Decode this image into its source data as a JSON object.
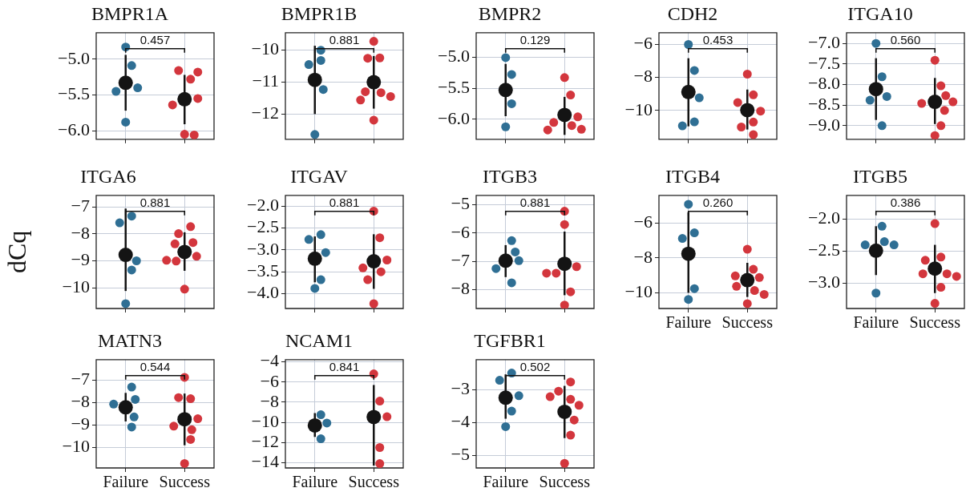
{
  "chart_data": [
    {
      "type": "scatter",
      "title": "BMPR1A",
      "categories": [
        "Failure",
        "Success"
      ],
      "ylim": [
        -6.12,
        -4.63
      ],
      "yticks": [
        {
          "value": -6,
          "label": "−6.0"
        },
        {
          "value": -5.5,
          "label": "−5.5"
        },
        {
          "value": -5,
          "label": "−5.0"
        }
      ],
      "grid": true,
      "marker": "circle",
      "tick_labels": "y",
      "series": [
        {
          "x": [
            "Failure",
            "Failure",
            "Failure",
            "Failure",
            "Failure"
          ],
          "values": [
            -4.83,
            -5.09,
            -5.4,
            -5.45,
            -5.88
          ],
          "color": "#2f6f94"
        },
        {
          "x": [
            "Success",
            "Success",
            "Success",
            "Success",
            "Success",
            "Success",
            "Success"
          ],
          "values": [
            -5.28,
            -5.16,
            -5.18,
            -5.55,
            -5.64,
            -6.05,
            -6.06
          ],
          "color": "#d3363d"
        },
        {
          "x": [
            "Failure",
            "Success"
          ],
          "values": [
            -5.33,
            -5.56
          ],
          "errors": [
            [
              -5.72,
              -4.94
            ],
            [
              -5.91,
              -5.22
            ]
          ],
          "color": "#141414"
        }
      ],
      "annotations": [
        "0.457"
      ]
    },
    {
      "type": "scatter",
      "title": "BMPR1B",
      "categories": [
        "Failure",
        "Success"
      ],
      "ylim": [
        -12.79,
        -9.45
      ],
      "yticks": [
        {
          "value": -12,
          "label": "−12"
        },
        {
          "value": -11,
          "label": "−11"
        },
        {
          "value": -10,
          "label": "−10"
        }
      ],
      "grid": true,
      "marker": "circle",
      "tick_labels": "y",
      "series": [
        {
          "x": [
            "Failure",
            "Failure",
            "Failure",
            "Failure",
            "Failure"
          ],
          "values": [
            -10.0,
            -10.32,
            -10.45,
            -11.23,
            -12.64
          ],
          "color": "#2f6f94"
        },
        {
          "x": [
            "Success",
            "Success",
            "Success",
            "Success",
            "Success",
            "Success",
            "Success",
            "Success"
          ],
          "values": [
            -9.72,
            -10.24,
            -10.25,
            -11.33,
            -11.3,
            -11.45,
            -11.56,
            -12.19
          ],
          "color": "#d3363d"
        },
        {
          "x": [
            "Failure",
            "Success"
          ],
          "values": [
            -10.93,
            -11.0
          ],
          "errors": [
            [
              -12.0,
              -9.86
            ],
            [
              -11.83,
              -10.18
            ]
          ],
          "color": "#141414"
        }
      ],
      "annotations": [
        "0.881"
      ]
    },
    {
      "type": "scatter",
      "title": "BMPR2",
      "categories": [
        "Failure",
        "Success"
      ],
      "ylim": [
        -6.32,
        -4.61
      ],
      "yticks": [
        {
          "value": -6,
          "label": "−6.0"
        },
        {
          "value": -5.5,
          "label": "−5.5"
        },
        {
          "value": -5,
          "label": "−5.0"
        }
      ],
      "grid": true,
      "marker": "circle",
      "tick_labels": "y",
      "series": [
        {
          "x": [
            "Failure",
            "Failure",
            "Failure",
            "Failure"
          ],
          "values": [
            -5.01,
            -5.28,
            -5.75,
            -6.12
          ],
          "color": "#2f6f94"
        },
        {
          "x": [
            "Success",
            "Success",
            "Success",
            "Success",
            "Success",
            "Success",
            "Success"
          ],
          "values": [
            -5.33,
            -5.61,
            -5.96,
            -6.05,
            -6.1,
            -6.16,
            -6.17
          ],
          "color": "#d3363d"
        },
        {
          "x": [
            "Failure",
            "Success"
          ],
          "values": [
            -5.53,
            -5.93
          ],
          "errors": [
            [
              -5.95,
              -5.11
            ],
            [
              -6.25,
              -5.64
            ]
          ],
          "color": "#141414"
        }
      ],
      "annotations": [
        "0.129"
      ]
    },
    {
      "type": "scatter",
      "title": "CDH2",
      "categories": [
        "Failure",
        "Success"
      ],
      "ylim": [
        -11.74,
        -5.31
      ],
      "yticks": [
        {
          "value": -10,
          "label": "−10"
        },
        {
          "value": -8,
          "label": "−8"
        },
        {
          "value": -6,
          "label": "−6"
        }
      ],
      "grid": true,
      "marker": "circle",
      "tick_labels": "y",
      "series": [
        {
          "x": [
            "Failure",
            "Failure",
            "Failure",
            "Failure",
            "Failure"
          ],
          "values": [
            -6.02,
            -7.59,
            -9.24,
            -10.69,
            -10.93
          ],
          "color": "#2f6f94"
        },
        {
          "x": [
            "Success",
            "Success",
            "Success",
            "Success",
            "Success",
            "Success",
            "Success"
          ],
          "values": [
            -7.81,
            -9.06,
            -9.52,
            -10.04,
            -10.7,
            -11.0,
            -11.46
          ],
          "color": "#d3363d"
        },
        {
          "x": [
            "Failure",
            "Success"
          ],
          "values": [
            -8.89,
            -9.98
          ],
          "errors": [
            [
              -10.96,
              -6.85
            ],
            [
              -11.15,
              -8.74
            ]
          ],
          "color": "#141414"
        }
      ],
      "annotations": [
        "0.453"
      ]
    },
    {
      "type": "scatter",
      "title": "ITGA10",
      "categories": [
        "Failure",
        "Success"
      ],
      "ylim": [
        -9.33,
        -6.74
      ],
      "yticks": [
        {
          "value": -9,
          "label": "−9.0"
        },
        {
          "value": -8.5,
          "label": "−8.5"
        },
        {
          "value": -8,
          "label": "−8.0"
        },
        {
          "value": -7.5,
          "label": "−7.5"
        },
        {
          "value": -7,
          "label": "−7.0"
        }
      ],
      "grid": true,
      "marker": "circle",
      "tick_labels": "y",
      "series": [
        {
          "x": [
            "Failure",
            "Failure",
            "Failure",
            "Failure",
            "Failure"
          ],
          "values": [
            -7.0,
            -7.81,
            -8.29,
            -8.38,
            -9.0
          ],
          "color": "#2f6f94"
        },
        {
          "x": [
            "Success",
            "Success",
            "Success",
            "Success",
            "Success",
            "Success",
            "Success",
            "Success"
          ],
          "values": [
            -7.41,
            -8.03,
            -8.27,
            -8.46,
            -8.42,
            -8.63,
            -9.0,
            -9.24
          ],
          "color": "#d3363d"
        },
        {
          "x": [
            "Failure",
            "Success"
          ],
          "values": [
            -8.11,
            -8.42
          ],
          "errors": [
            [
              -8.86,
              -7.36
            ],
            [
              -8.96,
              -7.84
            ]
          ],
          "color": "#141414"
        }
      ],
      "annotations": [
        "0.560"
      ]
    },
    {
      "type": "scatter",
      "title": "ITGA6",
      "ylabel": "dCq",
      "categories": [
        "Failure",
        "Success"
      ],
      "ylim": [
        -10.77,
        -6.57
      ],
      "yticks": [
        {
          "value": -10,
          "label": "−10"
        },
        {
          "value": -9,
          "label": "−9"
        },
        {
          "value": -8,
          "label": "−8"
        },
        {
          "value": -7,
          "label": "−7"
        }
      ],
      "grid": true,
      "marker": "circle",
      "tick_labels": "y",
      "series": [
        {
          "x": [
            "Failure",
            "Failure",
            "Failure",
            "Failure",
            "Failure"
          ],
          "values": [
            -7.34,
            -7.59,
            -9.0,
            -9.34,
            -10.59
          ],
          "color": "#2f6f94"
        },
        {
          "x": [
            "Success",
            "Success",
            "Success",
            "Success",
            "Success",
            "Success",
            "Success",
            "Success"
          ],
          "values": [
            -7.73,
            -7.99,
            -8.32,
            -8.37,
            -8.83,
            -9.01,
            -8.98,
            -10.05
          ],
          "color": "#d3363d"
        },
        {
          "x": [
            "Failure",
            "Success"
          ],
          "values": [
            -8.78,
            -8.67
          ],
          "errors": [
            [
              -10.12,
              -7.06
            ],
            [
              -9.37,
              -7.94
            ]
          ],
          "color": "#141414"
        }
      ],
      "annotations": [
        "0.881"
      ]
    },
    {
      "type": "scatter",
      "title": "ITGAV",
      "categories": [
        "Failure",
        "Success"
      ],
      "ylim": [
        -4.34,
        -1.75
      ],
      "yticks": [
        {
          "value": -4,
          "label": "−4.0"
        },
        {
          "value": -3.5,
          "label": "−3.5"
        },
        {
          "value": -3,
          "label": "−3.0"
        },
        {
          "value": -2.5,
          "label": "−2.5"
        },
        {
          "value": -2,
          "label": "−2.0"
        }
      ],
      "grid": true,
      "marker": "circle",
      "tick_labels": "y",
      "series": [
        {
          "x": [
            "Failure",
            "Failure",
            "Failure",
            "Failure",
            "Failure"
          ],
          "values": [
            -2.65,
            -2.76,
            -3.06,
            -3.68,
            -3.88
          ],
          "color": "#2f6f94"
        },
        {
          "x": [
            "Success",
            "Success",
            "Success",
            "Success",
            "Success",
            "Success",
            "Success"
          ],
          "values": [
            -2.11,
            -2.72,
            -3.23,
            -3.41,
            -3.5,
            -3.68,
            -4.23
          ],
          "color": "#d3363d"
        },
        {
          "x": [
            "Failure",
            "Success"
          ],
          "values": [
            -3.2,
            -3.26
          ],
          "errors": [
            [
              -3.74,
              -2.69
            ],
            [
              -3.89,
              -2.64
            ]
          ],
          "color": "#141414"
        }
      ],
      "annotations": [
        "0.881"
      ]
    },
    {
      "type": "scatter",
      "title": "ITGB3",
      "categories": [
        "Failure",
        "Success"
      ],
      "ylim": [
        -8.67,
        -4.67
      ],
      "yticks": [
        {
          "value": -8,
          "label": "−8"
        },
        {
          "value": -7,
          "label": "−7"
        },
        {
          "value": -6,
          "label": "−6"
        },
        {
          "value": -5,
          "label": "−5"
        }
      ],
      "grid": true,
      "marker": "circle",
      "tick_labels": "y",
      "series": [
        {
          "x": [
            "Failure",
            "Failure",
            "Failure",
            "Failure",
            "Failure"
          ],
          "values": [
            -6.27,
            -6.67,
            -6.98,
            -7.26,
            -7.76
          ],
          "color": "#2f6f94"
        },
        {
          "x": [
            "Success",
            "Success",
            "Success",
            "Success",
            "Success",
            "Success",
            "Success"
          ],
          "values": [
            -5.23,
            -5.7,
            -7.19,
            -7.42,
            -7.42,
            -8.08,
            -8.55
          ],
          "color": "#d3363d"
        },
        {
          "x": [
            "Failure",
            "Success"
          ],
          "values": [
            -6.98,
            -7.09
          ],
          "errors": [
            [
              -7.56,
              -6.43
            ],
            [
              -8.2,
              -5.95
            ]
          ],
          "color": "#141414"
        }
      ],
      "annotations": [
        "0.881"
      ]
    },
    {
      "type": "scatter",
      "title": "ITGB4",
      "categories": [
        "Failure",
        "Success"
      ],
      "ylim": [
        -10.9,
        -4.41
      ],
      "yticks": [
        {
          "value": -10,
          "label": "−10"
        },
        {
          "value": -8,
          "label": "−8"
        },
        {
          "value": -6,
          "label": "−6"
        }
      ],
      "grid": true,
      "marker": "circle",
      "series": [
        {
          "x": [
            "Failure",
            "Failure",
            "Failure",
            "Failure",
            "Failure"
          ],
          "values": [
            -4.92,
            -6.56,
            -6.88,
            -9.76,
            -10.38
          ],
          "color": "#2f6f94"
        },
        {
          "x": [
            "Success",
            "Success",
            "Success",
            "Success",
            "Success",
            "Success",
            "Success",
            "Success"
          ],
          "values": [
            -7.5,
            -8.65,
            -9.03,
            -9.12,
            -9.63,
            -9.87,
            -10.09,
            -10.62
          ],
          "color": "#d3363d"
        },
        {
          "x": [
            "Failure",
            "Success"
          ],
          "values": [
            -7.76,
            -9.27
          ],
          "errors": [
            [
              -10.0,
              -5.38
            ],
            [
              -10.24,
              -8.28
            ]
          ],
          "color": "#141414"
        }
      ],
      "annotations": [
        "0.260"
      ]
    },
    {
      "type": "scatter",
      "title": "ITGB5",
      "categories": [
        "Failure",
        "Success"
      ],
      "ylim": [
        -3.39,
        -1.63
      ],
      "yticks": [
        {
          "value": -3,
          "label": "−3.0"
        },
        {
          "value": -2.5,
          "label": "−2.5"
        },
        {
          "value": -2,
          "label": "−2.0"
        }
      ],
      "grid": true,
      "marker": "circle",
      "series": [
        {
          "x": [
            "Failure",
            "Failure",
            "Failure",
            "Failure",
            "Failure"
          ],
          "values": [
            -2.11,
            -2.35,
            -2.4,
            -2.4,
            -3.15
          ],
          "color": "#2f6f94"
        },
        {
          "x": [
            "Success",
            "Success",
            "Success",
            "Success",
            "Success",
            "Success",
            "Success",
            "Success"
          ],
          "values": [
            -2.07,
            -2.59,
            -2.64,
            -2.85,
            -2.85,
            -2.89,
            -3.06,
            -3.31
          ],
          "color": "#d3363d"
        },
        {
          "x": [
            "Failure",
            "Success"
          ],
          "values": [
            -2.49,
            -2.77
          ],
          "errors": [
            [
              -2.87,
              -2.11
            ],
            [
              -3.15,
              -2.4
            ]
          ],
          "color": "#141414"
        }
      ],
      "annotations": [
        "0.386"
      ]
    },
    {
      "type": "scatter",
      "title": "MATN3",
      "categories": [
        "Failure",
        "Success"
      ],
      "ylim": [
        -10.91,
        -6.09
      ],
      "yticks": [
        {
          "value": -10,
          "label": "−10"
        },
        {
          "value": -9,
          "label": "−9"
        },
        {
          "value": -8,
          "label": "−8"
        },
        {
          "value": -7,
          "label": "−7"
        }
      ],
      "grid": true,
      "marker": "circle",
      "series": [
        {
          "x": [
            "Failure",
            "Failure",
            "Failure",
            "Failure",
            "Failure"
          ],
          "values": [
            -7.86,
            -7.31,
            -8.07,
            -8.64,
            -9.09
          ],
          "color": "#2f6f94"
        },
        {
          "x": [
            "Success",
            "Success",
            "Success",
            "Success",
            "Success",
            "Success",
            "Success",
            "Success"
          ],
          "values": [
            -6.88,
            -7.83,
            -7.78,
            -8.72,
            -9.05,
            -9.21,
            -9.64,
            -10.71
          ],
          "color": "#d3363d"
        },
        {
          "x": [
            "Failure",
            "Success"
          ],
          "values": [
            -8.21,
            -8.74
          ],
          "errors": [
            [
              -8.84,
              -7.57
            ],
            [
              -9.9,
              -7.6
            ]
          ],
          "color": "#141414"
        }
      ],
      "annotations": [
        "0.544"
      ]
    },
    {
      "type": "scatter",
      "title": "NCAM1",
      "categories": [
        "Failure",
        "Success"
      ],
      "ylim": [
        -14.53,
        -3.77
      ],
      "yticks": [
        {
          "value": -14,
          "label": "−14"
        },
        {
          "value": -12,
          "label": "−12"
        },
        {
          "value": -10,
          "label": "−10"
        },
        {
          "value": -8,
          "label": "−8"
        },
        {
          "value": -6,
          "label": "−6"
        },
        {
          "value": -4,
          "label": "−4"
        }
      ],
      "grid": true,
      "marker": "circle",
      "series": [
        {
          "x": [
            "Failure",
            "Failure",
            "Failure"
          ],
          "values": [
            -9.24,
            -10.07,
            -11.63
          ],
          "color": "#2f6f94"
        },
        {
          "x": [
            "Success",
            "Success",
            "Success",
            "Success",
            "Success"
          ],
          "values": [
            -5.18,
            -7.89,
            -9.44,
            -12.5,
            -14.1
          ],
          "color": "#d3363d"
        },
        {
          "x": [
            "Failure",
            "Success"
          ],
          "values": [
            -10.31,
            -9.47
          ],
          "errors": [
            [
              -11.45,
              -9.08
            ],
            [
              -14.3,
              -6.29
            ]
          ],
          "color": "#141414"
        }
      ],
      "annotations": [
        "0.841"
      ]
    },
    {
      "type": "scatter",
      "title": "TGFBR1",
      "categories": [
        "Failure",
        "Success"
      ],
      "ylim": [
        -5.38,
        -2.08
      ],
      "yticks": [
        {
          "value": -5,
          "label": "−5"
        },
        {
          "value": -4,
          "label": "−4"
        },
        {
          "value": -3,
          "label": "−3"
        }
      ],
      "grid": true,
      "marker": "circle",
      "series": [
        {
          "x": [
            "Failure",
            "Failure",
            "Failure",
            "Failure",
            "Failure"
          ],
          "values": [
            -2.49,
            -2.71,
            -3.18,
            -3.65,
            -4.12
          ],
          "color": "#2f6f94"
        },
        {
          "x": [
            "Success",
            "Success",
            "Success",
            "Success",
            "Success",
            "Success",
            "Success",
            "Success"
          ],
          "values": [
            -2.76,
            -3.04,
            -3.29,
            -3.21,
            -3.47,
            -3.92,
            -4.38,
            -5.24
          ],
          "color": "#d3363d"
        },
        {
          "x": [
            "Failure",
            "Success"
          ],
          "values": [
            -3.24,
            -3.67
          ],
          "errors": [
            [
              -3.88,
              -2.53
            ],
            [
              -4.47,
              -2.88
            ]
          ],
          "color": "#141414"
        }
      ],
      "annotations": [
        "0.502"
      ]
    }
  ]
}
